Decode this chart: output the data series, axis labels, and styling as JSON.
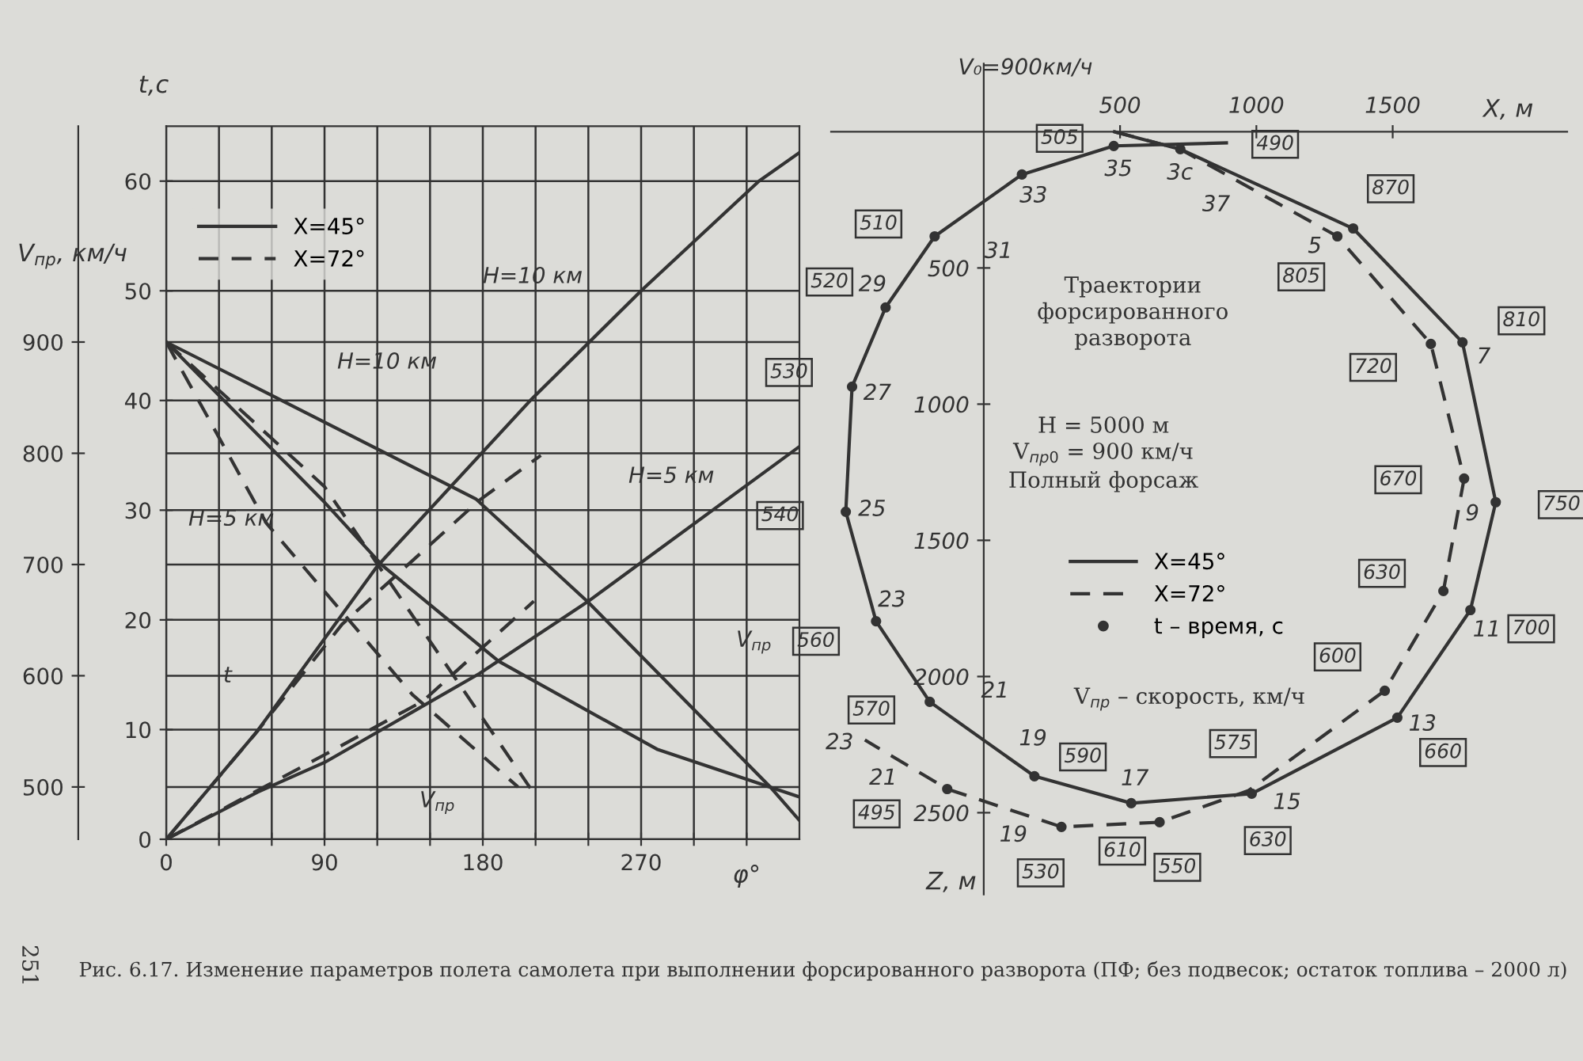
{
  "chart_data": [
    {
      "type": "line",
      "xlabel": "φ°",
      "ylabel": "t,с",
      "y2label": "V$_{пр}$, км/ч",
      "xlim": [
        0,
        360
      ],
      "xticks": [
        0,
        {
          "value": 30,
          "label": null
        },
        {
          "value": 60,
          "label": null
        },
        90,
        {
          "value": 120,
          "label": null
        },
        {
          "value": 150,
          "label": null
        },
        180,
        {
          "value": 210,
          "label": null
        },
        {
          "value": 240,
          "label": null
        },
        270,
        {
          "value": 300,
          "label": null
        },
        {
          "value": 330,
          "label": null
        }
      ],
      "ylim": [
        0,
        65
      ],
      "yticks": [
        0,
        10,
        20,
        30,
        40,
        50,
        60
      ],
      "y2lim": [
        453,
        1094
      ],
      "y2ticks": [
        500,
        600,
        700,
        800,
        900
      ],
      "grid": true,
      "legend": "top left",
      "series": [
        {
          "name": "X=45°",
          "color": "#333333",
          "line_style": "solid",
          "x": [
            0,
            52,
            120,
            207,
            270,
            337,
            360
          ],
          "values": [
            0,
            9.9,
            24.9,
            40,
            50,
            60,
            62.6
          ]
        },
        {
          "name": "X=72°",
          "color": "#333333",
          "line_style": "dashed",
          "x": [
            0,
            50,
            100,
            178,
            213
          ],
          "values": [
            0,
            9.5,
            19.6,
            30.9,
            35
          ]
        },
        {
          "color": "#333333",
          "line_style": "solid",
          "x": [
            0,
            52,
            90,
            178,
            240,
            360
          ],
          "values": [
            0,
            4.3,
            7,
            15.1,
            21.7,
            35.8
          ]
        },
        {
          "color": "#333333",
          "line_style": "dashed",
          "x": [
            0,
            90,
            146,
            209
          ],
          "values": [
            0,
            7.7,
            12.6,
            21.7
          ]
        },
        {
          "color": "#333333",
          "line_style": "solid",
          "axis": "y2",
          "x": [
            0,
            60,
            176,
            240,
            344,
            360
          ],
          "values": [
            900,
            852,
            759,
            666,
            499,
            470
          ]
        },
        {
          "color": "#333333",
          "line_style": "solid",
          "axis": "y2",
          "x": [
            0,
            90,
            123,
            189,
            279,
            360
          ],
          "values": [
            900,
            756,
            699,
            613,
            534,
            491
          ]
        },
        {
          "color": "#333333",
          "line_style": "dashed",
          "axis": "y2",
          "x": [
            0,
            90,
            169,
            207
          ],
          "values": [
            900,
            770,
            587,
            499
          ]
        },
        {
          "color": "#333333",
          "line_style": "dashed",
          "axis": "y2",
          "x": [
            0,
            57,
            140,
            200
          ],
          "values": [
            900,
            737,
            583,
            500
          ]
        }
      ],
      "annotations": [
        "Рис. 6.17. Изменение параметров полета самолета при выполнении форсированного разворота (ПФ; без подвесок; остаток топлива – 2000 л)",
        "251",
        "H=10 км",
        "H=10 км",
        "H=5 км",
        "H=5 км",
        "t",
        "V$_{пр}$",
        "V$_{пр}$"
      ]
    },
    {
      "type": "line",
      "xlabel": "X, м",
      "ylabel": "Z, м",
      "xlim": [
        -560,
        2140
      ],
      "xticks": [
        500,
        1000,
        1500
      ],
      "ylim": [
        2800,
        -250
      ],
      "yticks": [
        500,
        1000,
        1500,
        2000,
        2500
      ],
      "legend": "center",
      "series": [
        {
          "name": "X=45°",
          "color": "#333333",
          "line_style": "solid",
          "x": [
            480,
            721,
            1355,
            1756,
            1878,
            1785,
            1517,
            983,
            541,
            186,
            -198,
            -395,
            -506,
            -483,
            -360,
            -180,
            140,
            477,
            890
          ],
          "values": [
            0,
            64,
            355,
            773,
            1360,
            1756,
            2151,
            2430,
            2465,
            2366,
            2093,
            1797,
            1395,
            936,
            645,
            384,
            157,
            52,
            41
          ]
        },
        {
          "name": "X=72°",
          "color": "#333333",
          "line_style": "dashed",
          "x": [
            480,
            721,
            1297,
            1640,
            1762,
            1686,
            1471,
            971,
            645,
            285,
            -134,
            -436
          ],
          "values": [
            0,
            64,
            384,
            779,
            1273,
            1686,
            2052,
            2419,
            2535,
            2552,
            2413,
            2233
          ]
        },
        {
          "name": "t – время, с",
          "type": "scatter",
          "marker": "circle",
          "color": "#333333",
          "x": [
            721,
            1355,
            1756,
            1878,
            1785,
            1517,
            983,
            541,
            186,
            -198,
            -395,
            -506,
            -483,
            -360,
            -180,
            140,
            477,
            1297,
            1640,
            1762,
            1686,
            1471,
            645,
            285,
            -134
          ],
          "values": [
            64,
            355,
            773,
            1360,
            1756,
            2151,
            2430,
            2465,
            2366,
            2093,
            1797,
            1395,
            936,
            645,
            384,
            157,
            52,
            384,
            779,
            1273,
            1686,
            2052,
            2535,
            2552,
            2413
          ]
        }
      ],
      "annotations": [
        "Траектории\nфорсированного\nразворота",
        "H = 5000 м\nV$_{пр0}$ = 900 км/ч\nПолный форсаж",
        {
          "text": "V₀=900км/ч",
          "x": 480,
          "y": 0
        },
        {
          "text": "3с",
          "x": 721,
          "y": 64
        },
        {
          "text": "5",
          "x": 1297,
          "y": 384
        },
        {
          "text": "7",
          "x": 1756,
          "y": 773
        },
        {
          "text": "9",
          "x": 1878,
          "y": 1360
        },
        {
          "text": "11",
          "x": 1785,
          "y": 1756
        },
        {
          "text": "13",
          "x": 1471,
          "y": 2052
        },
        {
          "text": "15",
          "x": 983,
          "y": 2430
        },
        {
          "text": "17",
          "x": 541,
          "y": 2465
        },
        {
          "text": "19",
          "x": 186,
          "y": 2366
        },
        {
          "text": "19",
          "x": 285,
          "y": 2552
        },
        {
          "text": "21",
          "x": -198,
          "y": 2093
        },
        {
          "text": "21",
          "x": -134,
          "y": 2413
        },
        {
          "text": "23",
          "x": -395,
          "y": 1797
        },
        {
          "text": "23",
          "x": -436,
          "y": 2233
        },
        {
          "text": "25",
          "x": -506,
          "y": 1395
        },
        {
          "text": "27",
          "x": -483,
          "y": 936
        },
        {
          "text": "29",
          "x": -360,
          "y": 645
        },
        {
          "text": "31",
          "x": -180,
          "y": 384
        },
        {
          "text": "33",
          "x": 140,
          "y": 157
        },
        {
          "text": "35",
          "x": 477,
          "y": 52
        },
        {
          "text": "37",
          "x": 890,
          "y": 41
        },
        "V$_{пр}$ – скорость, км/ч",
        {
          "text": "870",
          "x": 1355,
          "y": 355
        },
        {
          "text": "810",
          "x": 1756,
          "y": 773
        },
        {
          "text": "750",
          "x": 1878,
          "y": 1360
        },
        {
          "text": "700",
          "x": 1785,
          "y": 1756
        },
        {
          "text": "660",
          "x": 1517,
          "y": 2151
        },
        {
          "text": "630",
          "x": 983,
          "y": 2430
        },
        {
          "text": "610",
          "x": 541,
          "y": 2465
        },
        {
          "text": "590",
          "x": 186,
          "y": 2366
        },
        {
          "text": "570",
          "x": -198,
          "y": 2093
        },
        {
          "text": "560",
          "x": -395,
          "y": 1797
        },
        {
          "text": "540",
          "x": -506,
          "y": 1395
        },
        {
          "text": "530",
          "x": -483,
          "y": 936
        },
        {
          "text": "520",
          "x": -360,
          "y": 645
        },
        {
          "text": "510",
          "x": -180,
          "y": 384
        },
        {
          "text": "505",
          "x": 140,
          "y": 157
        },
        {
          "text": "490",
          "x": 890,
          "y": 41
        },
        {
          "text": "805",
          "x": 1297,
          "y": 384
        },
        {
          "text": "720",
          "x": 1640,
          "y": 779
        },
        {
          "text": "670",
          "x": 1762,
          "y": 1273
        },
        {
          "text": "630",
          "x": 1686,
          "y": 1686
        },
        {
          "text": "600",
          "x": 1471,
          "y": 2052
        },
        {
          "text": "575",
          "x": 971,
          "y": 2419
        },
        {
          "text": "550",
          "x": 645,
          "y": 2535
        },
        {
          "text": "530",
          "x": 285,
          "y": 2552
        },
        {
          "text": "495",
          "x": -134,
          "y": 2413
        }
      ]
    }
  ]
}
